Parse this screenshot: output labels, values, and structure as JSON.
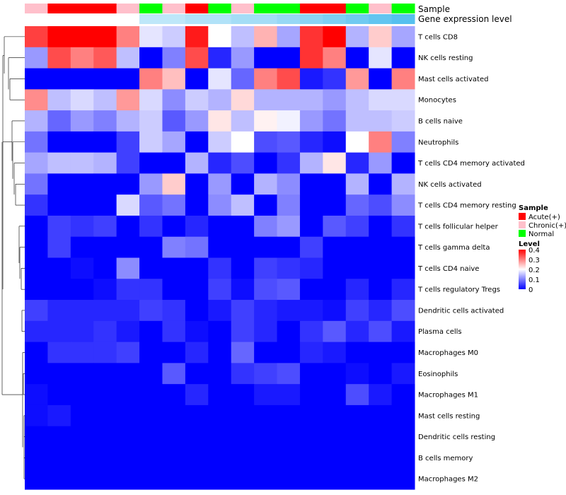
{
  "chart_data": {
    "type": "heatmap",
    "annotation_labels": [
      "Sample",
      "Gene expression level"
    ],
    "rows": [
      "T cells CD8",
      "NK cells resting",
      "Mast cells activated",
      "Monocytes",
      "B cells naive",
      "Neutrophils",
      "T cells CD4 memory activated",
      "NK cells activated",
      "T cells CD4 memory resting",
      "T cells follicular helper",
      "T cells gamma delta",
      "T cells CD4 naive",
      "T cells regulatory  Tregs",
      "Dendritic cells activated",
      "Plasma cells",
      "Macrophages M0",
      "Eosinophils",
      "Macrophages M1",
      "Mast cells resting",
      "Dendritic cells resting",
      "B cells memory",
      "Macrophages M2"
    ],
    "sample_annotation": [
      "Chronic(+)",
      "Acute(+)",
      "Acute(+)",
      "Acute(+)",
      "Chronic(+)",
      "Normal",
      "Chronic(+)",
      "Acute(+)",
      "Normal",
      "Chronic(+)",
      "Normal",
      "Normal",
      "Acute(+)",
      "Acute(+)",
      "Normal",
      "Chronic(+)",
      "Normal"
    ],
    "expression_annotation": [
      0.0,
      0.0,
      0.0,
      0.0,
      0.0,
      0.25,
      0.25,
      0.3,
      0.3,
      0.35,
      0.35,
      0.4,
      0.45,
      0.5,
      0.55,
      0.6,
      0.65
    ],
    "values": [
      [
        0.35,
        0.42,
        0.42,
        0.42,
        0.3,
        0.18,
        0.16,
        0.38,
        0.2,
        0.15,
        0.26,
        0.13,
        0.36,
        0.41,
        0.14,
        0.24,
        0.13
      ],
      [
        0.12,
        0.34,
        0.3,
        0.33,
        0.15,
        0.0,
        0.1,
        0.34,
        0.03,
        0.12,
        0.0,
        0.0,
        0.36,
        0.3,
        0.0,
        0.18,
        0.0
      ],
      [
        0.0,
        0.0,
        0.0,
        0.0,
        0.0,
        0.3,
        0.25,
        0.0,
        0.18,
        0.08,
        0.3,
        0.34,
        0.02,
        0.04,
        0.28,
        0.0,
        0.3
      ],
      [
        0.29,
        0.15,
        0.17,
        0.15,
        0.28,
        0.17,
        0.11,
        0.16,
        0.14,
        0.23,
        0.14,
        0.14,
        0.14,
        0.12,
        0.15,
        0.17,
        0.17
      ],
      [
        0.14,
        0.08,
        0.12,
        0.1,
        0.14,
        0.16,
        0.07,
        0.12,
        0.22,
        0.15,
        0.21,
        0.19,
        0.12,
        0.09,
        0.15,
        0.15,
        0.16
      ],
      [
        0.09,
        0.0,
        0.0,
        0.0,
        0.05,
        0.16,
        0.13,
        0.0,
        0.16,
        0.2,
        0.06,
        0.07,
        0.03,
        0.01,
        0.2,
        0.3,
        0.1
      ],
      [
        0.13,
        0.15,
        0.15,
        0.14,
        0.05,
        0.0,
        0.0,
        0.14,
        0.03,
        0.06,
        0.0,
        0.04,
        0.14,
        0.22,
        0.03,
        0.12,
        0.0
      ],
      [
        0.09,
        0.0,
        0.0,
        0.0,
        0.0,
        0.12,
        0.24,
        0.0,
        0.12,
        0.0,
        0.14,
        0.11,
        0.0,
        0.0,
        0.14,
        0.0,
        0.14
      ],
      [
        0.04,
        0.0,
        0.0,
        0.0,
        0.17,
        0.07,
        0.09,
        0.0,
        0.11,
        0.15,
        0.0,
        0.1,
        0.0,
        0.0,
        0.08,
        0.06,
        0.11
      ],
      [
        0.0,
        0.05,
        0.04,
        0.05,
        0.0,
        0.04,
        0.0,
        0.03,
        0.0,
        0.0,
        0.1,
        0.12,
        0.0,
        0.07,
        0.05,
        0.0,
        0.04
      ],
      [
        0.0,
        0.05,
        0.0,
        0.0,
        0.0,
        0.0,
        0.1,
        0.09,
        0.0,
        0.0,
        0.0,
        0.0,
        0.05,
        0.0,
        0.0,
        0.0,
        0.0
      ],
      [
        0.0,
        0.0,
        0.01,
        0.0,
        0.11,
        0.0,
        0.0,
        0.0,
        0.04,
        0.0,
        0.05,
        0.04,
        0.03,
        0.0,
        0.0,
        0.0,
        0.0
      ],
      [
        0.0,
        0.0,
        0.0,
        0.01,
        0.04,
        0.04,
        0.0,
        0.0,
        0.05,
        0.01,
        0.06,
        0.07,
        0.0,
        0.0,
        0.03,
        0.0,
        0.03
      ],
      [
        0.05,
        0.03,
        0.03,
        0.03,
        0.03,
        0.05,
        0.04,
        0.0,
        0.02,
        0.05,
        0.03,
        0.02,
        0.02,
        0.01,
        0.05,
        0.03,
        0.06
      ],
      [
        0.03,
        0.03,
        0.03,
        0.04,
        0.02,
        0.0,
        0.04,
        0.01,
        0.0,
        0.05,
        0.03,
        0.0,
        0.04,
        0.07,
        0.03,
        0.06,
        0.02
      ],
      [
        0.0,
        0.04,
        0.04,
        0.04,
        0.05,
        0.0,
        0.0,
        0.03,
        0.0,
        0.08,
        0.0,
        0.0,
        0.03,
        0.02,
        0.0,
        0.0,
        0.0
      ],
      [
        0.0,
        0.0,
        0.0,
        0.0,
        0.0,
        0.0,
        0.07,
        0.0,
        0.0,
        0.04,
        0.05,
        0.06,
        0.0,
        0.0,
        0.01,
        0.0,
        0.02
      ],
      [
        0.01,
        0.0,
        0.0,
        0.0,
        0.0,
        0.0,
        0.0,
        0.03,
        0.0,
        0.0,
        0.02,
        0.02,
        0.0,
        0.0,
        0.06,
        0.02,
        0.0
      ],
      [
        0.01,
        0.02,
        0.0,
        0.0,
        0.0,
        0.0,
        0.0,
        0.0,
        0.0,
        0.0,
        0.0,
        0.0,
        0.0,
        0.0,
        0.0,
        0.0,
        0.0
      ],
      [
        0.0,
        0.0,
        0.0,
        0.0,
        0.0,
        0.0,
        0.0,
        0.0,
        0.0,
        0.0,
        0.0,
        0.0,
        0.0,
        0.0,
        0.0,
        0.0,
        0.0
      ],
      [
        0.0,
        0.0,
        0.0,
        0.0,
        0.0,
        0.0,
        0.0,
        0.0,
        0.0,
        0.0,
        0.0,
        0.0,
        0.0,
        0.0,
        0.0,
        0.0,
        0.0
      ],
      [
        0.0,
        0.0,
        0.0,
        0.0,
        0.0,
        0.0,
        0.0,
        0.0,
        0.0,
        0.0,
        0.0,
        0.0,
        0.0,
        0.0,
        0.0,
        0.0,
        0.0
      ]
    ],
    "color_scale": {
      "low": "#0000ff",
      "mid": "#ffffff",
      "high": "#ff0000",
      "min": 0,
      "mid_value": 0.2,
      "max": 0.4
    },
    "legends": {
      "sample": {
        "title": "Sample",
        "items": [
          {
            "label": "Acute(+)",
            "color": "#ff0000"
          },
          {
            "label": "Chronic(+)",
            "color": "#ffc0cb"
          },
          {
            "label": "Normal",
            "color": "#00ff00"
          }
        ]
      },
      "level": {
        "title": "Level",
        "ticks": [
          "0.4",
          "0.3",
          "0.2",
          "0.1",
          "0"
        ]
      }
    },
    "expression_color_low": "#ffffff",
    "expression_color_high": "#56c0ef",
    "grid": false,
    "legend_position": "right"
  }
}
